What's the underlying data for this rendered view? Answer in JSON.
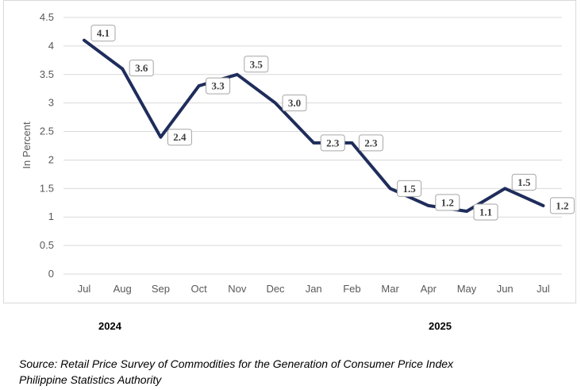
{
  "chart_data": {
    "type": "line",
    "categories": [
      "Jul",
      "Aug",
      "Sep",
      "Oct",
      "Nov",
      "Dec",
      "Jan",
      "Feb",
      "Mar",
      "Apr",
      "May",
      "Jun",
      "Jul"
    ],
    "series": [
      {
        "values": [
          4.1,
          3.6,
          2.4,
          3.3,
          3.5,
          3.0,
          2.3,
          2.3,
          1.5,
          1.2,
          1.1,
          1.5,
          1.2
        ]
      }
    ],
    "data_labels": [
      "4.1",
      "3.6",
      "2.4",
      "3.3",
      "3.5",
      "3.0",
      "2.3",
      "2.3",
      "1.5",
      "1.2",
      "1.1",
      "1.5",
      "1.2"
    ],
    "yticks": [
      "0",
      "0.5",
      "1",
      "1.5",
      "2",
      "2.5",
      "3",
      "3.5",
      "4",
      "4.5"
    ],
    "ylim": [
      0,
      4.5
    ],
    "ylabel": "In Percent",
    "xlabel": "",
    "title": "",
    "grid": true,
    "line_color": "#1f2d5c",
    "grid_color": "#d9d9d9"
  },
  "year_labels": {
    "first": "2024",
    "second": "2025"
  },
  "source": {
    "line1": "Source: Retail Price Survey of Commodities for the Generation of Consumer Price Index",
    "line2": "Philippine Statistics Authority"
  }
}
